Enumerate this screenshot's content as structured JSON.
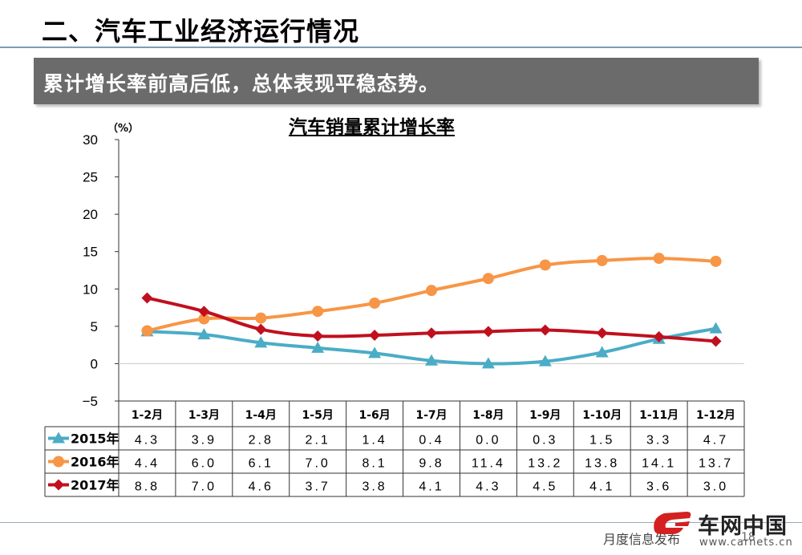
{
  "slide": {
    "title": "二、汽车工业经济运行情况",
    "subtitle": "累计增长率前高后低，总体表现平稳态势。"
  },
  "footer": {
    "text": "月度信息发布",
    "page": "18",
    "logo_text": "车网中国",
    "logo_url": "www.carnets.cn"
  },
  "colors": {
    "s2015": "#4bacc6",
    "s2016": "#f79646",
    "s2017": "#c0101e",
    "gridline": "#c8c8c8",
    "subtitle_bg": "#6b6b6b"
  },
  "chart_data": {
    "type": "line",
    "title": "汽车销量累计增长率",
    "unit_label": "（%）",
    "ylim": [
      -5,
      30
    ],
    "yticks": [
      -5,
      0,
      5,
      10,
      15,
      20,
      25,
      30
    ],
    "categories": [
      "1-2月",
      "1-3月",
      "1-4月",
      "1-5月",
      "1-6月",
      "1-7月",
      "1-8月",
      "1-9月",
      "1-10月",
      "1-11月",
      "1-12月"
    ],
    "legend_placement": "data-table",
    "grid": "horizontal at zero only",
    "series": [
      {
        "name": "2015年",
        "marker": "triangle",
        "values": [
          4.3,
          3.9,
          2.8,
          2.1,
          1.4,
          0.4,
          0.0,
          0.3,
          1.5,
          3.3,
          4.7
        ],
        "labels": [
          "4.3",
          "3.9",
          "2.8",
          "2.1",
          "1.4",
          "0.4",
          "0.0",
          "0.3",
          "1.5",
          "3.3",
          "4.7"
        ]
      },
      {
        "name": "2016年",
        "marker": "circle",
        "values": [
          4.4,
          6.0,
          6.1,
          7.0,
          8.1,
          9.8,
          11.4,
          13.2,
          13.8,
          14.1,
          13.7
        ],
        "labels": [
          "4.4",
          "6.0",
          "6.1",
          "7.0",
          "8.1",
          "9.8",
          "11.4",
          "13.2",
          "13.8",
          "14.1",
          "13.7"
        ]
      },
      {
        "name": "2017年",
        "marker": "diamond",
        "values": [
          8.8,
          7.0,
          4.6,
          3.7,
          3.8,
          4.1,
          4.3,
          4.5,
          4.1,
          3.6,
          3.0
        ],
        "labels": [
          "8.8",
          "7.0",
          "4.6",
          "3.7",
          "3.8",
          "4.1",
          "4.3",
          "4.5",
          "4.1",
          "3.6",
          "3.0"
        ]
      }
    ]
  }
}
